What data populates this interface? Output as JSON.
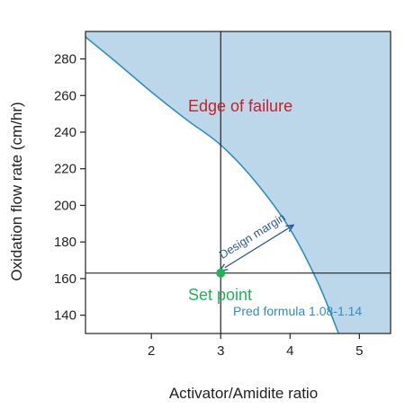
{
  "chart_data": {
    "type": "line",
    "xlabel": "Activator/Amidite ratio",
    "ylabel": "Oxidation flow rate (cm/hr)",
    "xlim": [
      1.05,
      5.45
    ],
    "ylim": [
      130,
      295
    ],
    "x_ticks": [
      2,
      3,
      4,
      5
    ],
    "y_ticks": [
      140,
      160,
      180,
      200,
      220,
      240,
      260,
      280
    ],
    "grid": false,
    "series": [
      {
        "role": "edge-of-failure-boundary",
        "x": [
          1.05,
          1.5,
          2.0,
          2.5,
          3.0,
          3.5,
          4.0,
          4.4,
          4.7
        ],
        "y": [
          292,
          278,
          262,
          247,
          233,
          213,
          187,
          158,
          130
        ]
      }
    ],
    "failure_region": "above-right of boundary",
    "set_point": {
      "x": 3.0,
      "y": 163
    },
    "crosshair": {
      "x": 3.0,
      "y": 163
    },
    "design_margin_arrow": {
      "from": {
        "x": 3.06,
        "y": 166
      },
      "to": {
        "x": 4.04,
        "y": 189
      }
    },
    "annotations": {
      "edge_of_failure": "Edge of failure",
      "design_margin": "Design margin",
      "set_point": "Set point",
      "pred_formula": "Pred formula 1.08-1.14"
    },
    "colors": {
      "failure_fill": "#bdd7ea",
      "boundary_line": "#2e8fc2",
      "edge_text": "#c8202a",
      "set_point": "#1fb455",
      "set_point_text": "#1fb455",
      "design_margin": "#2b5aa0",
      "pred_text": "#2e8fc2",
      "axis": "#222222"
    }
  }
}
